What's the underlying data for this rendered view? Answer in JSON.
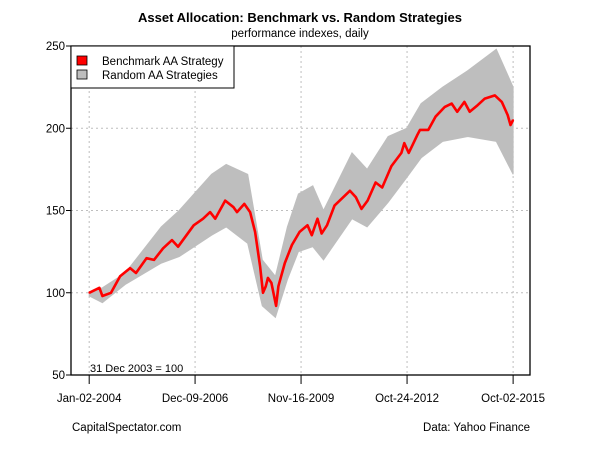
{
  "chart_data": {
    "type": "area",
    "title": "Asset Allocation: Benchmark vs. Random Strategies",
    "subtitle": "performance indexes, daily",
    "xlabel": "",
    "ylabel": "",
    "xlim": [
      "2003-07-02",
      "2016-03-21"
    ],
    "ylim": [
      50,
      250
    ],
    "grid": true,
    "legend_position": "top-left",
    "annotation": "31 Dec 2003 = 100",
    "source_left": "CapitalSpectator.com",
    "source_right": "Data: Yahoo Finance",
    "y_ticks": [
      50,
      100,
      150,
      200,
      250
    ],
    "x_ticks": [
      {
        "date": "2004-01-02",
        "label": "Jan-02-2004"
      },
      {
        "date": "2006-12-09",
        "label": "Dec-09-2006"
      },
      {
        "date": "2009-11-16",
        "label": "Nov-16-2009"
      },
      {
        "date": "2012-10-24",
        "label": "Oct-24-2012"
      },
      {
        "date": "2015-10-02",
        "label": "Oct-02-2015"
      }
    ],
    "series": [
      {
        "name": "Random AA Strategies",
        "color": "#bebebe",
        "kind": "range",
        "x": [
          "2004-01-02",
          "2004-05-15",
          "2005-01-01",
          "2006-01-01",
          "2006-07-01",
          "2007-05-25",
          "2007-10-20",
          "2008-05-25",
          "2008-10-20",
          "2009-03-01",
          "2009-07-01",
          "2009-10-20",
          "2010-03-15",
          "2010-07-01",
          "2011-04-15",
          "2011-09-15",
          "2012-04-15",
          "2012-10-20",
          "2013-03-15",
          "2013-10-20",
          "2014-07-01",
          "2015-04-15",
          "2015-10-02"
        ],
        "upper": [
          100,
          103,
          112,
          140,
          150,
          172,
          178,
          172,
          120,
          110,
          140,
          160,
          165,
          150,
          185,
          175,
          195,
          200,
          215,
          225,
          235,
          248,
          225
        ],
        "lower": [
          98,
          94,
          105,
          118,
          122,
          135,
          140,
          130,
          92,
          85,
          108,
          125,
          128,
          120,
          145,
          140,
          155,
          170,
          182,
          192,
          195,
          192,
          172
        ]
      },
      {
        "name": "Benchmark AA Strategy",
        "color": "#ff0000",
        "kind": "line",
        "x": [
          "2004-01-02",
          "2004-04-15",
          "2004-05-15",
          "2004-08-10",
          "2004-11-10",
          "2005-02-20",
          "2005-04-20",
          "2005-08-05",
          "2005-10-20",
          "2006-01-20",
          "2006-04-20",
          "2006-06-20",
          "2006-11-25",
          "2007-02-28",
          "2007-05-10",
          "2007-07-01",
          "2007-10-10",
          "2008-01-02",
          "2008-02-06",
          "2008-04-20",
          "2008-06-18",
          "2008-08-08",
          "2008-09-27",
          "2008-10-27",
          "2008-11-24",
          "2008-12-16",
          "2009-01-20",
          "2009-03-09",
          "2009-04-01",
          "2009-06-05",
          "2009-08-15",
          "2009-11-01",
          "2010-01-20",
          "2010-03-05",
          "2010-05-01",
          "2010-06-12",
          "2010-08-05",
          "2010-10-20",
          "2011-03-25",
          "2011-05-25",
          "2011-07-20",
          "2011-09-20",
          "2011-12-10",
          "2012-02-15",
          "2012-05-18",
          "2012-08-28",
          "2012-09-26",
          "2012-11-10",
          "2012-12-20",
          "2013-02-06",
          "2013-03-04",
          "2013-05-27",
          "2013-08-08",
          "2013-11-10",
          "2014-01-19",
          "2014-03-15",
          "2014-05-27",
          "2014-07-20",
          "2014-10-08",
          "2014-12-20",
          "2015-04-01",
          "2015-06-10",
          "2015-08-08",
          "2015-09-06",
          "2015-10-02"
        ],
        "values": [
          100,
          103,
          98,
          100,
          110,
          115,
          112,
          121,
          120,
          127,
          132,
          128,
          141,
          145,
          149,
          145,
          156,
          152,
          149,
          154,
          149,
          137,
          116,
          100,
          104,
          109,
          106,
          92,
          104,
          118,
          129,
          137,
          141,
          135,
          145,
          136,
          141,
          153,
          162,
          158,
          151,
          156,
          167,
          164,
          177,
          185,
          191,
          185,
          190,
          196,
          199,
          199,
          207,
          213,
          215,
          210,
          216,
          210,
          214,
          218,
          220,
          216,
          208,
          202,
          205
        ]
      }
    ]
  }
}
